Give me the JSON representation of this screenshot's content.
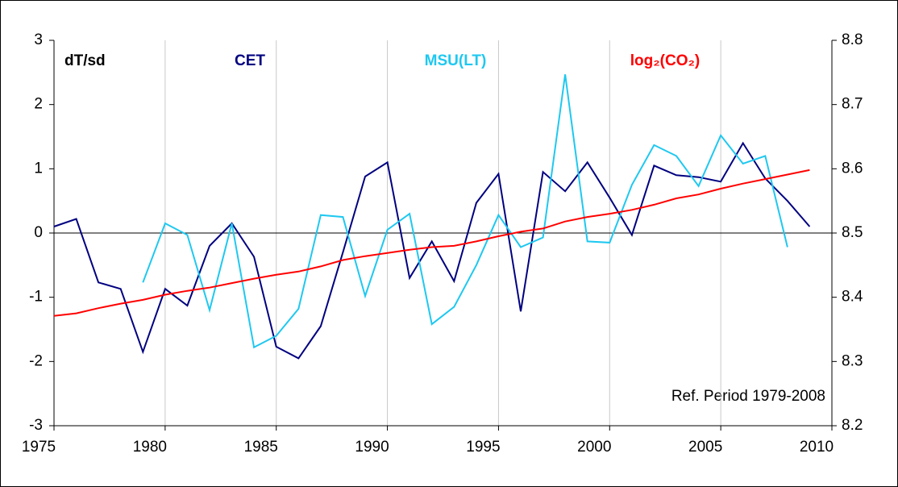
{
  "chart_data": {
    "type": "line",
    "annotations": [
      "dT/sd",
      "Ref. Period 1979-2008"
    ],
    "x": [
      1975,
      1976,
      1977,
      1978,
      1979,
      1980,
      1981,
      1982,
      1983,
      1984,
      1985,
      1986,
      1987,
      1988,
      1989,
      1990,
      1991,
      1992,
      1993,
      1994,
      1995,
      1996,
      1997,
      1998,
      1999,
      2000,
      2001,
      2002,
      2003,
      2004,
      2005,
      2006,
      2007,
      2008,
      2009
    ],
    "series": [
      {
        "name": "CET",
        "color": "#000080",
        "values": [
          0.1,
          0.22,
          -0.77,
          -0.87,
          -1.85,
          -0.87,
          -1.13,
          -0.2,
          0.15,
          -0.37,
          -1.77,
          -1.95,
          -1.45,
          -0.3,
          0.88,
          1.1,
          -0.7,
          -0.13,
          -0.75,
          0.47,
          0.92,
          -1.22,
          0.95,
          0.65,
          1.1,
          0.55,
          -0.03,
          1.05,
          0.9,
          0.87,
          0.8,
          1.4,
          0.85,
          0.5,
          0.1
        ]
      },
      {
        "name": "MSU(LT)",
        "color": "#1ec8f0",
        "values": [
          null,
          null,
          null,
          null,
          -0.77,
          0.15,
          -0.03,
          -1.2,
          0.15,
          -1.78,
          -1.6,
          -1.18,
          0.28,
          0.25,
          -0.98,
          0.05,
          0.3,
          -1.42,
          -1.15,
          -0.5,
          0.28,
          -0.22,
          -0.07,
          2.47,
          -0.13,
          -0.15,
          0.75,
          1.37,
          1.2,
          0.73,
          1.52,
          1.08,
          1.2,
          -0.22,
          null
        ]
      },
      {
        "name": "log₂(CO₂)",
        "color": "#ff0000",
        "axis": "y2",
        "values": [
          8.371,
          8.375,
          8.383,
          8.39,
          8.396,
          8.404,
          8.41,
          8.415,
          8.422,
          8.429,
          8.435,
          8.44,
          8.448,
          8.458,
          8.464,
          8.469,
          8.474,
          8.478,
          8.48,
          8.487,
          8.495,
          8.502,
          8.507,
          8.518,
          8.525,
          8.53,
          8.536,
          8.544,
          8.554,
          8.56,
          8.569,
          8.577,
          8.584,
          8.591,
          8.598
        ]
      }
    ],
    "xlim": [
      1975,
      2010
    ],
    "xticks": [
      1975,
      1980,
      1985,
      1990,
      1995,
      2000,
      2005,
      2010
    ],
    "ylim": [
      -3,
      3
    ],
    "yticks": [
      -3,
      -2,
      -1,
      0,
      1,
      2,
      3
    ],
    "y2lim": [
      8.2,
      8.8
    ],
    "y2ticks": [
      8.2,
      8.3,
      8.4,
      8.5,
      8.6,
      8.7,
      8.8
    ],
    "grid": "x"
  }
}
